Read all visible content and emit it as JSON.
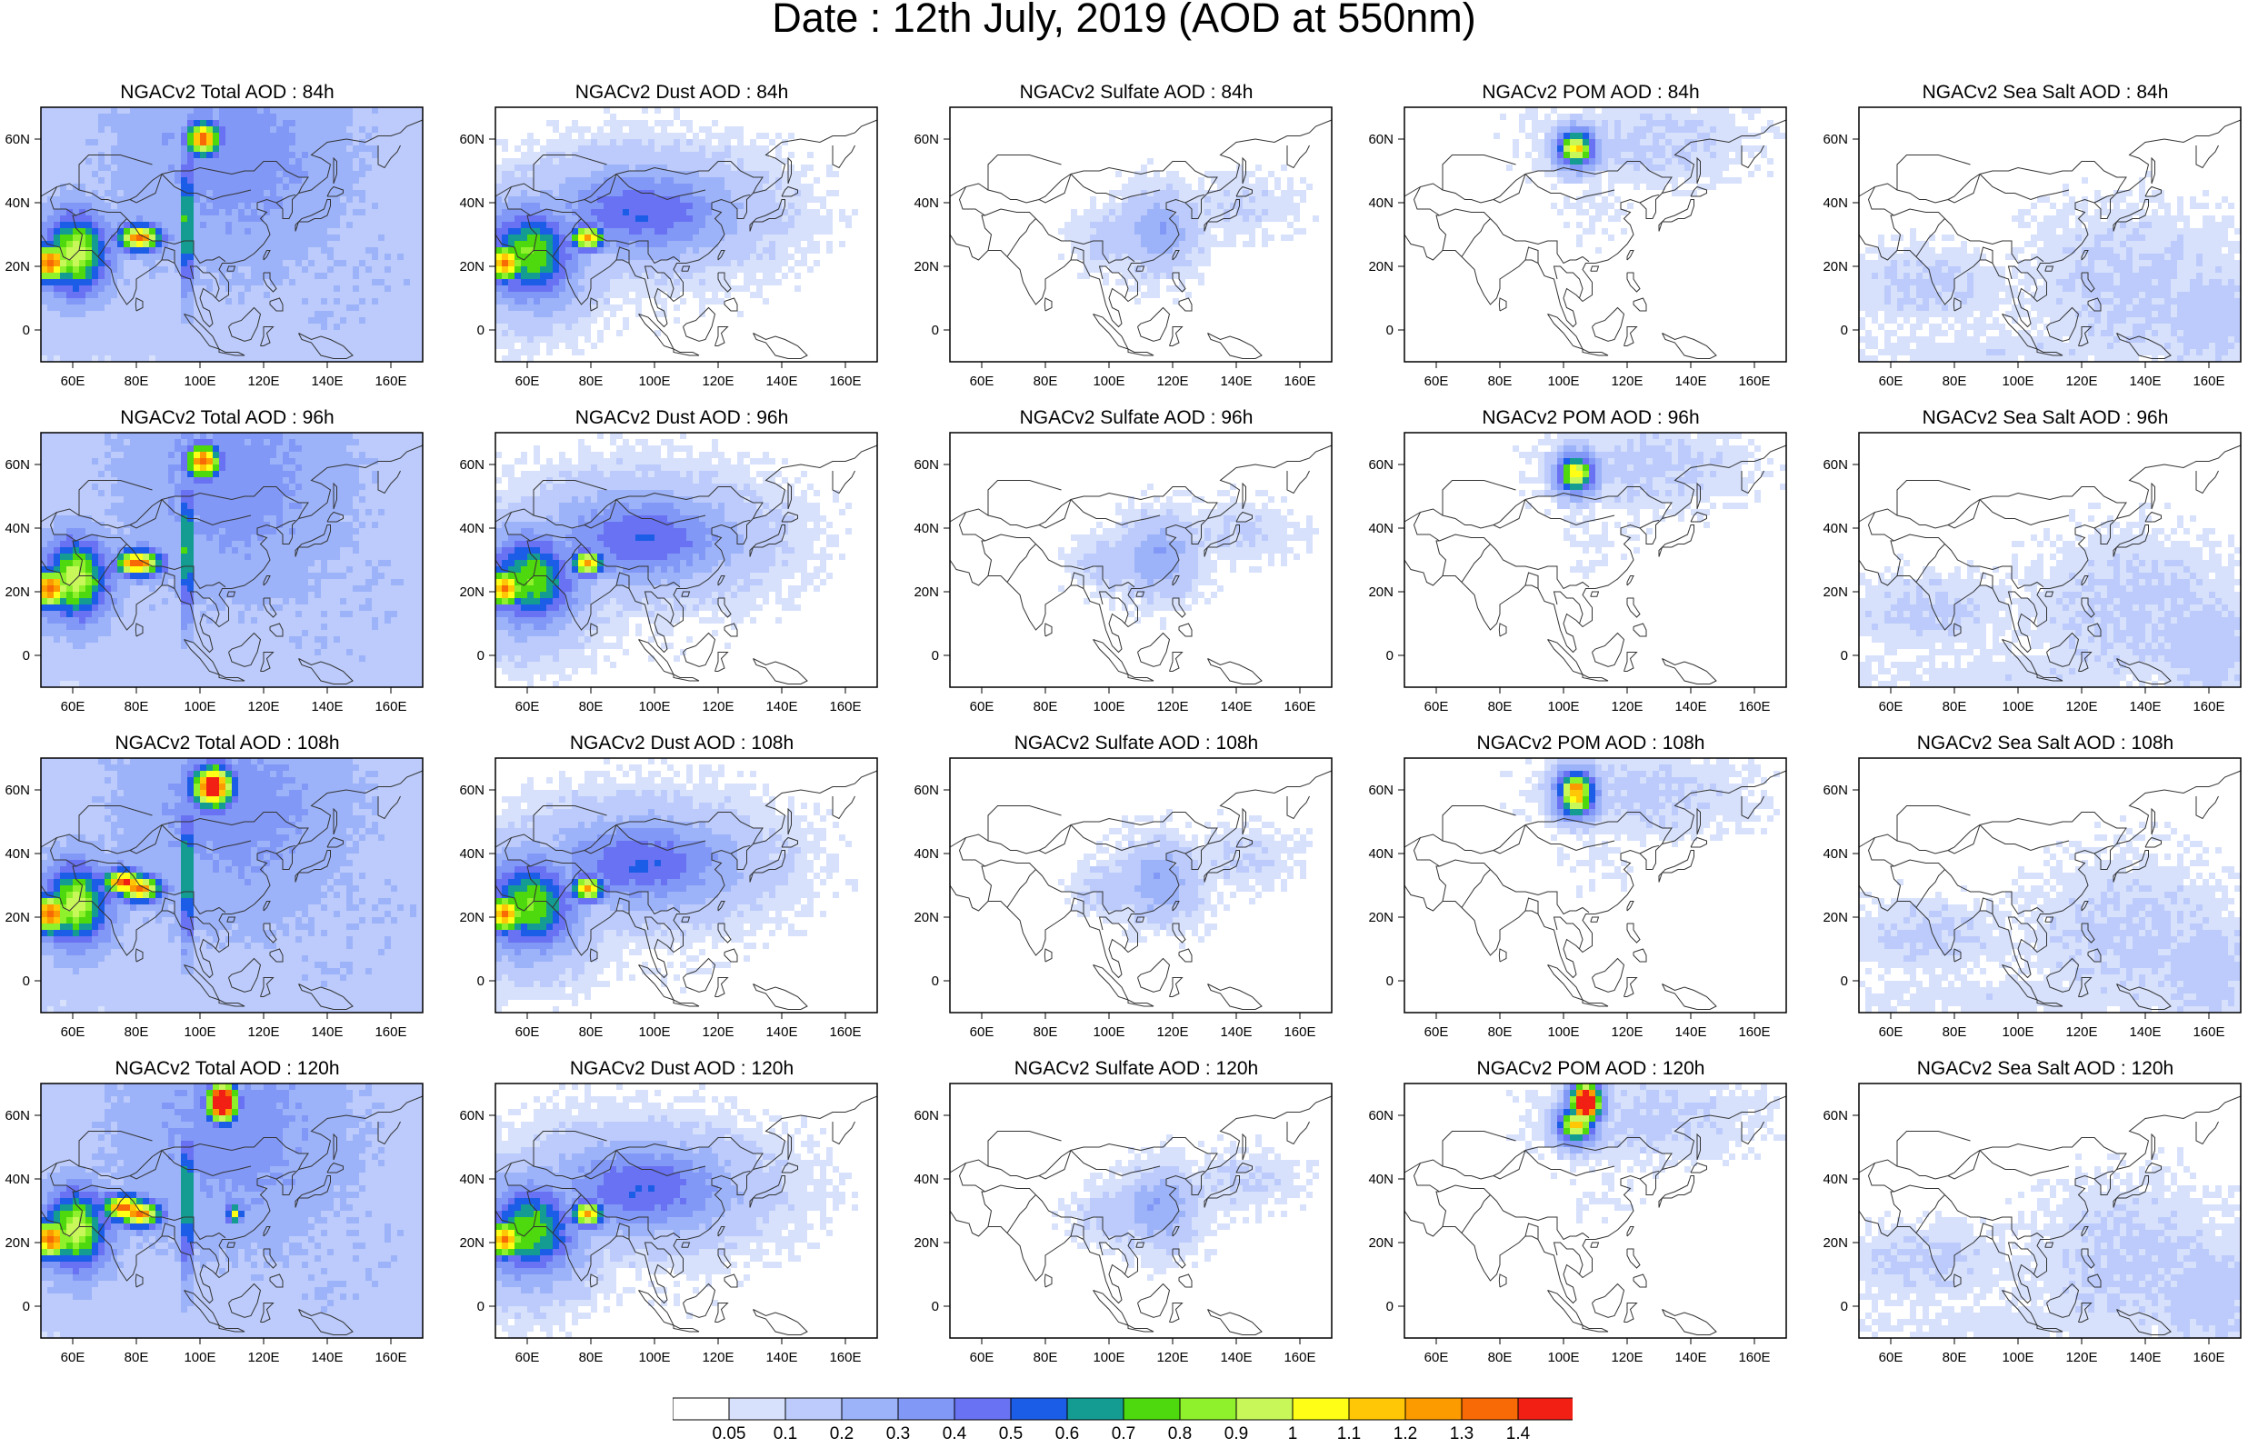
{
  "figure": {
    "title": "Date : 12th July, 2019 (AOD at 550nm)"
  },
  "panel_grid": {
    "lead_times": [
      "84h",
      "96h",
      "108h",
      "120h"
    ],
    "species": [
      "Total",
      "Dust",
      "Sulfate",
      "POM",
      "Sea Salt"
    ]
  },
  "panels": [
    [
      "NGACv2 Total AOD : 84h",
      "NGACv2 Dust AOD : 84h",
      "NGACv2 Sulfate AOD : 84h",
      "NGACv2 POM AOD : 84h",
      "NGACv2 Sea Salt AOD : 84h"
    ],
    [
      "NGACv2 Total AOD : 96h",
      "NGACv2 Dust AOD : 96h",
      "NGACv2 Sulfate AOD : 96h",
      "NGACv2 POM AOD : 96h",
      "NGACv2 Sea Salt AOD : 96h"
    ],
    [
      "NGACv2 Total AOD : 108h",
      "NGACv2 Dust AOD : 108h",
      "NGACv2 Sulfate AOD : 108h",
      "NGACv2 POM AOD : 108h",
      "NGACv2 Sea Salt AOD : 108h"
    ],
    [
      "NGACv2 Total AOD : 120h",
      "NGACv2 Dust AOD : 120h",
      "NGACv2 Sulfate AOD : 120h",
      "NGACv2 POM AOD : 120h",
      "NGACv2 Sea Salt  AOD : 120h"
    ]
  ],
  "map_axes": {
    "lon_range": [
      50,
      170
    ],
    "lat_range": [
      -10,
      70
    ],
    "lon_ticks": [
      60,
      80,
      100,
      120,
      140,
      160
    ],
    "lon_tick_labels": [
      "60E",
      "80E",
      "100E",
      "120E",
      "140E",
      "160E"
    ],
    "lat_ticks": [
      0,
      20,
      40,
      60
    ],
    "lat_tick_labels": [
      "0",
      "20N",
      "40N",
      "60N"
    ]
  },
  "colorbar": {
    "labels": [
      "0.05",
      "0.1",
      "0.2",
      "0.3",
      "0.4",
      "0.5",
      "0.6",
      "0.7",
      "0.8",
      "0.9",
      "1",
      "1.1",
      "1.2",
      "1.3",
      "1.4"
    ],
    "colors": [
      "#ffffff",
      "#d7e1fc",
      "#bccbfb",
      "#9db3f9",
      "#8298f6",
      "#6872f2",
      "#1b5de6",
      "#149c92",
      "#4ed80e",
      "#8ef12b",
      "#c8f75a",
      "#fefe16",
      "#ffc705",
      "#fb9b00",
      "#f76a05",
      "#f21f14"
    ]
  }
}
